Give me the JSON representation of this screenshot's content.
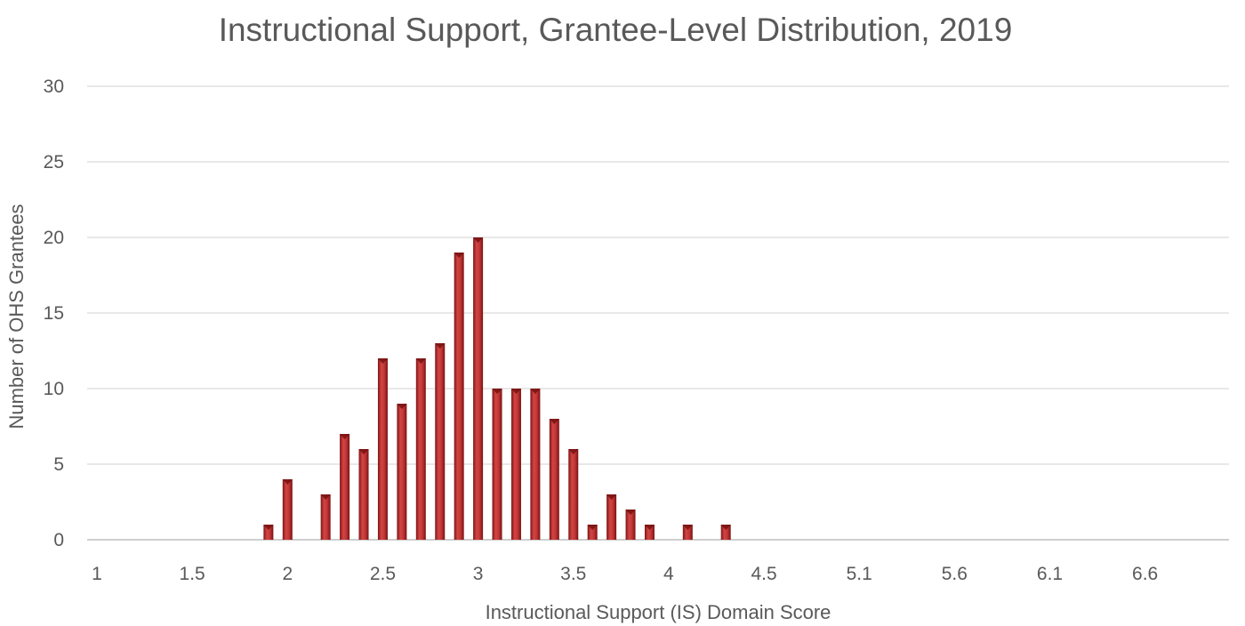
{
  "chart_data": {
    "type": "bar",
    "title": "Instructional Support, Grantee-Level Distribution, 2019",
    "xlabel": "Instructional Support (IS) Domain Score",
    "ylabel": "Number of OHS Grantees",
    "ylim": [
      0,
      30
    ],
    "yticks": [
      "0",
      "5",
      "10",
      "15",
      "20",
      "25",
      "30"
    ],
    "xtick_labels": [
      "1",
      "1.5",
      "2",
      "2.5",
      "3",
      "3.5",
      "4",
      "4.5",
      "5.1",
      "5.6",
      "6.1",
      "6.6"
    ],
    "categories": [
      "1",
      "1.1",
      "1.2",
      "1.3",
      "1.4",
      "1.5",
      "1.6",
      "1.7",
      "1.8",
      "1.9",
      "2",
      "2.1",
      "2.2",
      "2.3",
      "2.4",
      "2.5",
      "2.6",
      "2.7",
      "2.8",
      "2.9",
      "3",
      "3.1",
      "3.2",
      "3.3",
      "3.4",
      "3.5",
      "3.6",
      "3.7",
      "3.8",
      "3.9",
      "4",
      "4.1",
      "4.2",
      "4.3",
      "4.4",
      "4.5",
      "4.6",
      "4.7",
      "4.8",
      "4.9",
      "5.1",
      "5.2",
      "5.3",
      "5.4",
      "5.5",
      "5.6",
      "5.7",
      "5.8",
      "5.9",
      "6",
      "6.1",
      "6.2",
      "6.3",
      "6.4",
      "6.5",
      "6.6",
      "6.7",
      "6.8",
      "6.9"
    ],
    "values": [
      0,
      0,
      0,
      0,
      0,
      0,
      0,
      0,
      0,
      1,
      4,
      0,
      3,
      7,
      6,
      12,
      9,
      12,
      13,
      19,
      20,
      10,
      10,
      10,
      8,
      6,
      1,
      3,
      2,
      1,
      0,
      1,
      0,
      1,
      0,
      0,
      0,
      0,
      0,
      0,
      0,
      0,
      0,
      0,
      0,
      0,
      0,
      0,
      0,
      0,
      0,
      0,
      0,
      0,
      0,
      0,
      0,
      0,
      0
    ],
    "bar_color": "#b72c2c",
    "grid": true
  }
}
